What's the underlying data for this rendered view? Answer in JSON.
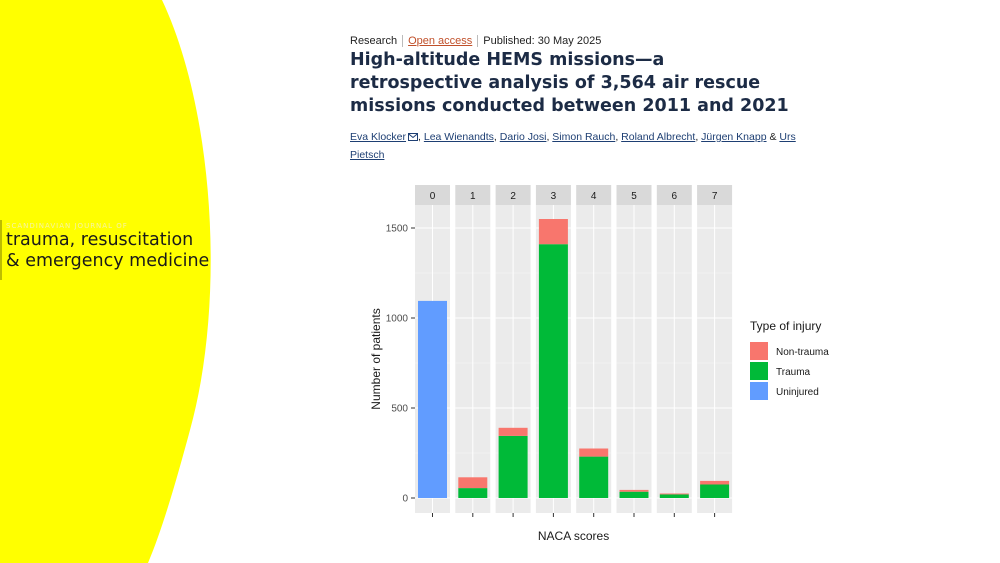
{
  "journal": {
    "small_label": "SCANDINAVIAN JOURNAL OF",
    "line1": "trauma, resuscitation",
    "line2": "& emergency medicine"
  },
  "colors": {
    "background_panel": "#ffff00",
    "non_trauma": "#f8766d",
    "trauma": "#00ba38",
    "uninjured": "#619cff",
    "title": "#1c2b45",
    "link": "#1e3f73",
    "open_access": "#c0502a"
  },
  "article": {
    "type": "Research",
    "access": "Open access",
    "published": "Published: 30 May 2025",
    "title": "High-altitude HEMS missions—a retrospective analysis of 3,564 air rescue missions conducted between 2011 and 2021",
    "authors": [
      "Eva Klocker",
      "Lea Wienandts",
      "Dario Josi",
      "Simon Rauch",
      "Roland Albrecht",
      "Jürgen Knapp",
      "Urs Pietsch"
    ],
    "mail_icon": "envelope-icon",
    "last_sep": "&"
  },
  "chart_data": {
    "type": "bar",
    "stacked": true,
    "facets": [
      "0",
      "1",
      "2",
      "3",
      "4",
      "5",
      "6",
      "7"
    ],
    "xlabel": "NACA scores",
    "ylabel": "Number of patients",
    "ylim": [
      0,
      1600
    ],
    "yticks": [
      0,
      500,
      1000,
      1500
    ],
    "grid": true,
    "legend": {
      "title": "Type of injury",
      "placement": "right"
    },
    "series": [
      {
        "name": "Non-trauma",
        "color": "#f8766d",
        "values": [
          0,
          60,
          45,
          140,
          45,
          10,
          5,
          20
        ]
      },
      {
        "name": "Trauma",
        "color": "#00ba38",
        "values": [
          0,
          55,
          345,
          1410,
          230,
          35,
          20,
          75
        ]
      },
      {
        "name": "Uninjured",
        "color": "#619cff",
        "values": [
          1095,
          0,
          0,
          0,
          0,
          0,
          0,
          0
        ]
      }
    ]
  }
}
